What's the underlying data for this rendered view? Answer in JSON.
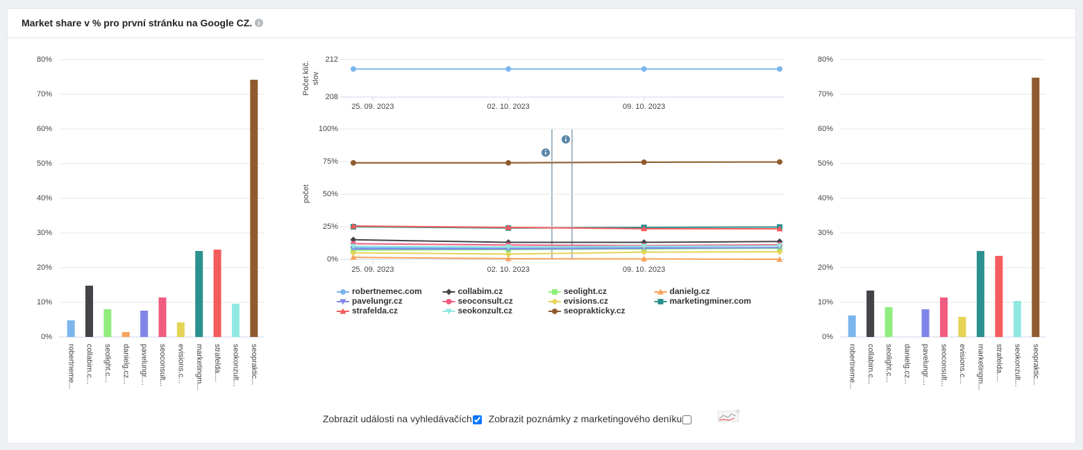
{
  "header": {
    "title": "Market share v % pro první stránku na Google CZ."
  },
  "chart_data": [
    {
      "type": "bar",
      "categories": [
        "robertneme...",
        "collabim.c...",
        "seolight.c...",
        "danielg.cz...",
        "pavelungr....",
        "seoconsult...",
        "evisions.c...",
        "marketingm...",
        "strafelda....",
        "seokonzult...",
        "seopraktic..."
      ],
      "values": [
        4.8,
        14.8,
        8,
        1.4,
        7.6,
        11.4,
        4.2,
        24.8,
        25.2,
        9.6,
        74.2
      ],
      "colors": [
        "#7cb5ec",
        "#434348",
        "#90ed7d",
        "#f7a35c",
        "#8085e9",
        "#f15c80",
        "#e4d354",
        "#2b908f",
        "#f45b5b",
        "#91e8e1",
        "#8f5b2e"
      ],
      "ylim": [
        0,
        80
      ],
      "yticks": [
        {
          "value": 0,
          "label": "0%"
        },
        {
          "value": 10,
          "label": "10%"
        },
        {
          "value": 20,
          "label": "20%"
        },
        {
          "value": 30,
          "label": "30%"
        },
        {
          "value": 40,
          "label": "40%"
        },
        {
          "value": 50,
          "label": "50%"
        },
        {
          "value": 60,
          "label": "60%"
        },
        {
          "value": 70,
          "label": "70%"
        },
        {
          "value": 80,
          "label": "80%"
        }
      ],
      "grid": true
    },
    {
      "type": "line",
      "ylabel": "Počet klíč. slov",
      "x": [
        "2023-09-24",
        "2023-10-02",
        "2023-10-09",
        "2023-10-16"
      ],
      "xlim": [
        "2023-09-24",
        "2023-10-16"
      ],
      "xticks": [
        {
          "value": "2023-09-25",
          "label": "25. 09. 2023"
        },
        {
          "value": "2023-10-02",
          "label": "02. 10. 2023"
        },
        {
          "value": "2023-10-09",
          "label": "09. 10. 2023"
        }
      ],
      "values": [
        211,
        211,
        211,
        211
      ],
      "color": "#7cb5ec",
      "marker": "circle",
      "ylim": [
        208,
        212
      ],
      "yticks": [
        208,
        212
      ],
      "grid": true
    },
    {
      "type": "line",
      "ylabel": "počet",
      "x": [
        "2023-09-24",
        "2023-10-02",
        "2023-10-09",
        "2023-10-16"
      ],
      "xlim": [
        "2023-09-24",
        "2023-10-16"
      ],
      "xticks": [
        {
          "value": "2023-09-25",
          "label": "25. 09. 2023"
        },
        {
          "value": "2023-10-02",
          "label": "02. 10. 2023"
        },
        {
          "value": "2023-10-09",
          "label": "09. 10. 2023"
        }
      ],
      "ylim": [
        0,
        100
      ],
      "yticks": [
        {
          "value": 0,
          "label": "0%"
        },
        {
          "value": 25,
          "label": "25%"
        },
        {
          "value": 50,
          "label": "50%"
        },
        {
          "value": 75,
          "label": "75%"
        },
        {
          "value": 100,
          "label": "100%"
        }
      ],
      "grid": true,
      "legend": "bottom",
      "series": [
        {
          "name": "robertnemec.com",
          "color": "#7cb5ec",
          "marker": "circle",
          "values": [
            9,
            9,
            9.5,
            10.5
          ]
        },
        {
          "name": "collabim.cz",
          "color": "#434348",
          "marker": "diamond",
          "values": [
            15,
            13,
            13,
            13.7
          ]
        },
        {
          "name": "seolight.cz",
          "color": "#90ed7d",
          "marker": "square",
          "values": [
            7,
            7.5,
            8,
            8.5
          ]
        },
        {
          "name": "danielg.cz",
          "color": "#f7a35c",
          "marker": "triangle",
          "values": [
            1.5,
            0.5,
            0.3,
            0
          ]
        },
        {
          "name": "pavelungr.cz",
          "color": "#8085e9",
          "marker": "triangle-down",
          "values": [
            8,
            8,
            8.5,
            9
          ]
        },
        {
          "name": "seoconsult.cz",
          "color": "#f15c80",
          "marker": "circle",
          "values": [
            12,
            11,
            10.5,
            11.2
          ]
        },
        {
          "name": "evisions.cz",
          "color": "#e4d354",
          "marker": "diamond",
          "values": [
            5,
            4,
            5.5,
            5.8
          ]
        },
        {
          "name": "marketingminer.com",
          "color": "#2b908f",
          "marker": "square",
          "values": [
            25,
            24,
            24.5,
            24.8
          ]
        },
        {
          "name": "strafelda.cz",
          "color": "#f45b5b",
          "marker": "triangle",
          "values": [
            25.5,
            24.5,
            23.5,
            23.4
          ]
        },
        {
          "name": "seokonzult.cz",
          "color": "#91e8e1",
          "marker": "triangle-down",
          "values": [
            10,
            9.5,
            10,
            10.4
          ]
        },
        {
          "name": "seoprakticky.cz",
          "color": "#8f5b2e",
          "marker": "circle",
          "values": [
            74,
            74,
            74.5,
            74.7
          ]
        }
      ]
    },
    {
      "type": "bar",
      "categories": [
        "robertneme...",
        "collabim.c...",
        "seolight.c...",
        "danielg.cz...",
        "pavelungr....",
        "seoconsult...",
        "evisions.c...",
        "marketingm...",
        "strafelda....",
        "seokonzult...",
        "seopraktic..."
      ],
      "values": [
        6.2,
        13.4,
        8.6,
        0,
        8,
        11.4,
        5.8,
        24.8,
        23.4,
        10.4,
        74.8
      ],
      "colors": [
        "#7cb5ec",
        "#434348",
        "#90ed7d",
        "#f7a35c",
        "#8085e9",
        "#f15c80",
        "#e4d354",
        "#2b908f",
        "#f45b5b",
        "#91e8e1",
        "#8f5b2e"
      ],
      "ylim": [
        0,
        80
      ],
      "yticks": [
        {
          "value": 0,
          "label": "0%"
        },
        {
          "value": 10,
          "label": "10%"
        },
        {
          "value": 20,
          "label": "20%"
        },
        {
          "value": 30,
          "label": "30%"
        },
        {
          "value": 40,
          "label": "40%"
        },
        {
          "value": 50,
          "label": "50%"
        },
        {
          "value": 60,
          "label": "60%"
        },
        {
          "value": 70,
          "label": "70%"
        },
        {
          "value": 80,
          "label": "80%"
        }
      ],
      "grid": true
    }
  ],
  "controls": [
    {
      "label": "Zobrazit události na vyhledávačích",
      "checked": true
    },
    {
      "label": "Zobrazit poznámky z marketingového deníku",
      "checked": false
    }
  ]
}
